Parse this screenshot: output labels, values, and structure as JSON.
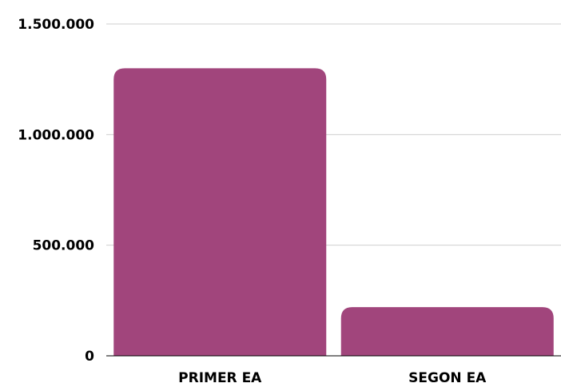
{
  "chart_data": {
    "type": "bar",
    "categories": [
      "PRIMER EA",
      "SEGON EA"
    ],
    "values": [
      1300000,
      220000
    ],
    "ylim": [
      0,
      1500000
    ],
    "yticks": [
      0,
      500000,
      1000000,
      1500000
    ],
    "ytick_labels": [
      "0",
      "500.000",
      "1.000.000",
      "1.500.000"
    ],
    "grid": true,
    "legend": "none",
    "bar_color": "#a1457c",
    "grid_color": "#cfcfcf",
    "axis_color": "#000000"
  }
}
